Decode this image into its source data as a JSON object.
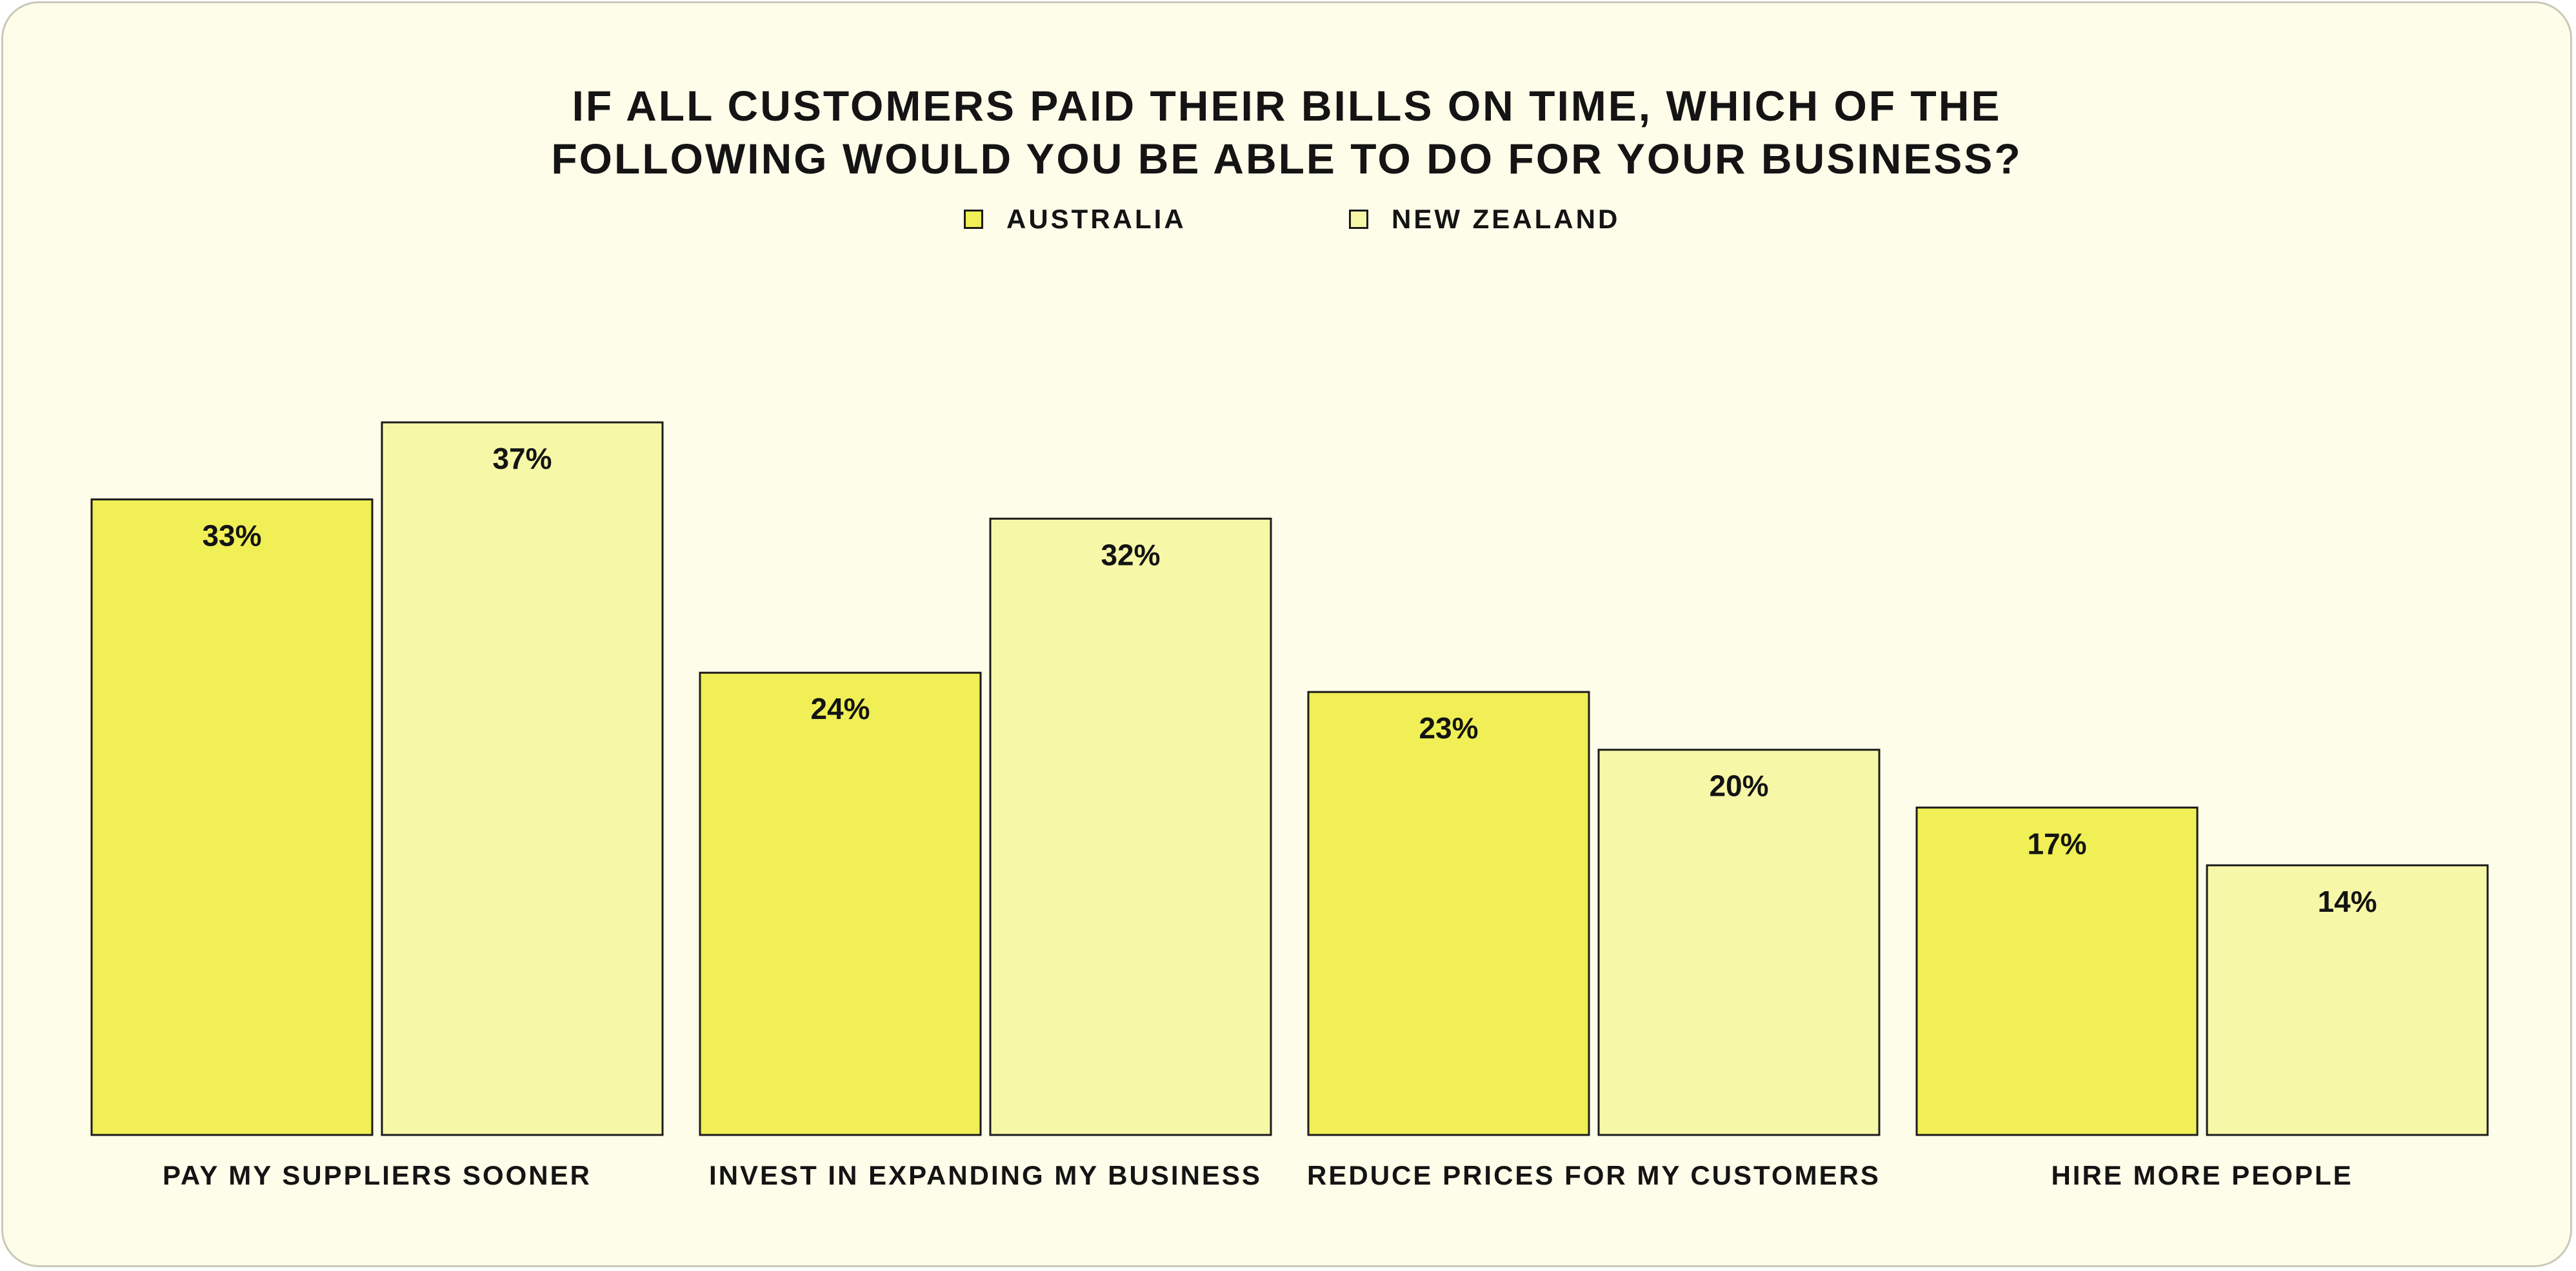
{
  "chart_data": {
    "type": "bar",
    "title_line1": "IF ALL CUSTOMERS PAID THEIR BILLS ON TIME, WHICH OF THE",
    "title_line2": "FOLLOWING WOULD YOU BE ABLE TO DO FOR YOUR BUSINESS?",
    "categories": [
      "PAY MY SUPPLIERS SOONER",
      "INVEST IN EXPANDING MY BUSINESS",
      "REDUCE PRICES FOR MY CUSTOMERS",
      "HIRE MORE PEOPLE"
    ],
    "series": [
      {
        "name": "AUSTRALIA",
        "color": "#f0ef55",
        "values": [
          33,
          24,
          23,
          17
        ],
        "labels": [
          "33%",
          "24%",
          "23%",
          "17%"
        ]
      },
      {
        "name": "NEW ZEALAND",
        "color": "#f7f7a8",
        "values": [
          37,
          32,
          20,
          14
        ],
        "labels": [
          "37%",
          "32%",
          "20%",
          "14%"
        ]
      }
    ],
    "ylim": [
      0,
      37
    ],
    "grid": false,
    "legend": "top-center",
    "xlabel": "",
    "ylabel": ""
  }
}
